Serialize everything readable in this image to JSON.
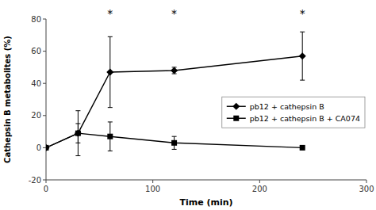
{
  "chart_data": {
    "type": "line",
    "xlabel": "Time (min)",
    "ylabel": "Cathepsin B metabolites (%)",
    "x": [
      0,
      30,
      60,
      120,
      240
    ],
    "series": [
      {
        "name": "pb12 + cathepsin B",
        "color": "#000000",
        "marker": "diamond",
        "values": [
          0,
          9,
          47,
          48,
          57
        ],
        "errors": [
          0,
          14,
          22,
          2,
          15
        ]
      },
      {
        "name": "pb12 + cathepsin B + CA074",
        "color": "#000000",
        "marker": "square",
        "values": [
          0,
          9,
          7,
          3,
          0
        ],
        "errors": [
          0,
          6,
          9,
          4,
          0.3
        ]
      }
    ],
    "xlim": [
      0,
      300
    ],
    "ylim": [
      -20,
      80
    ],
    "xticks": [
      0,
      100,
      200,
      300
    ],
    "yticks": [
      -20,
      0,
      20,
      40,
      60,
      80
    ],
    "annotations": [
      {
        "text": "*",
        "x": 60,
        "y": 80
      },
      {
        "text": "*",
        "x": 120,
        "y": 80
      },
      {
        "text": "*",
        "x": 240,
        "y": 80
      }
    ],
    "legend": "right",
    "grid": false
  }
}
